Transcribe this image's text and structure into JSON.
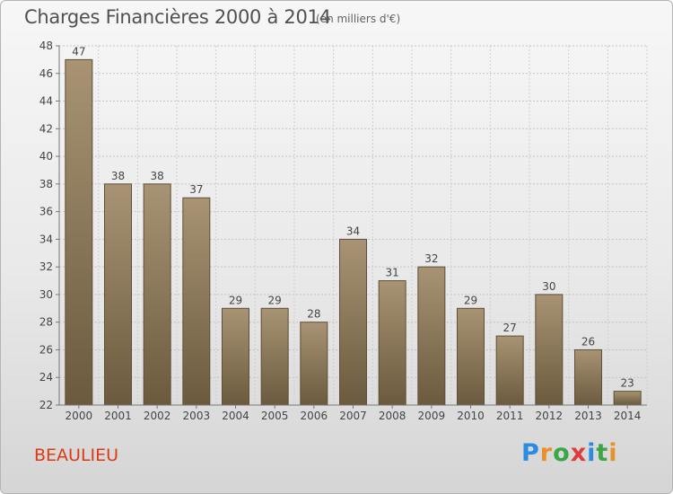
{
  "header": {
    "title": "Charges Financières 2000 à 2014",
    "subtitle": "(en milliers d'€)"
  },
  "footer": {
    "town": "BEAULIEU",
    "logo_letters": [
      "P",
      "r",
      "o",
      "x",
      "i",
      "t",
      "i"
    ],
    "logo_colors": [
      "#2a8be0",
      "#e8912a",
      "#3aa645",
      "#e03a3a",
      "#2a8be0",
      "#3aa645",
      "#e8912a"
    ]
  },
  "colors": {
    "bar_top": "#a89474",
    "bar_bottom": "#6b5a3e",
    "bar_border": "#5e4f36"
  },
  "chart_data": {
    "type": "bar",
    "categories": [
      "2000",
      "2001",
      "2002",
      "2003",
      "2004",
      "2005",
      "2006",
      "2007",
      "2008",
      "2009",
      "2010",
      "2011",
      "2012",
      "2013",
      "2014"
    ],
    "values": [
      47,
      38,
      38,
      37,
      29,
      29,
      28,
      34,
      31,
      32,
      29,
      27,
      30,
      26,
      23
    ],
    "ylim": [
      22,
      48
    ],
    "yticks": [
      22,
      24,
      26,
      28,
      30,
      32,
      34,
      36,
      38,
      40,
      42,
      44,
      46,
      48
    ],
    "grid": true,
    "title": "Charges Financières 2000 à 2014",
    "xlabel": "",
    "ylabel": ""
  }
}
